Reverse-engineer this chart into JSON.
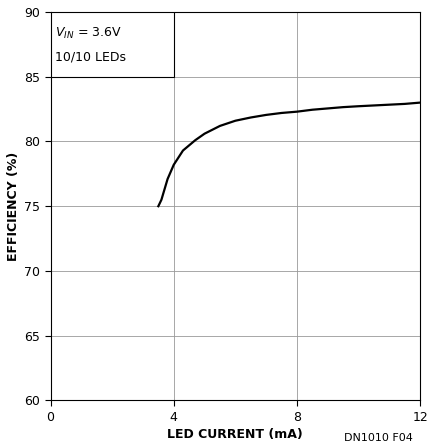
{
  "xlabel": "LED CURRENT (mA)",
  "ylabel": "EFFICIENCY (%)",
  "annotation_line1": "$V_{IN}$ = 3.6V",
  "annotation_line2": "10/10 LEDs",
  "xlim": [
    0,
    12
  ],
  "ylim": [
    60,
    90
  ],
  "xticks": [
    0,
    4,
    8,
    12
  ],
  "yticks": [
    60,
    65,
    70,
    75,
    80,
    85,
    90
  ],
  "curve_x": [
    3.5,
    3.6,
    3.7,
    3.8,
    4.0,
    4.3,
    4.7,
    5.0,
    5.5,
    6.0,
    6.5,
    7.0,
    7.5,
    8.0,
    8.5,
    9.0,
    9.5,
    10.0,
    10.5,
    11.0,
    11.5,
    12.0
  ],
  "curve_y": [
    75.0,
    75.5,
    76.3,
    77.1,
    78.2,
    79.3,
    80.1,
    80.6,
    81.2,
    81.6,
    81.85,
    82.05,
    82.2,
    82.3,
    82.45,
    82.55,
    82.65,
    82.72,
    82.78,
    82.84,
    82.9,
    83.0
  ],
  "line_color": "#000000",
  "line_width": 1.6,
  "grid_color": "#999999",
  "grid_linewidth": 0.6,
  "background_color": "#ffffff",
  "axis_label_fontsize": 9,
  "tick_fontsize": 9,
  "annotation_fontsize": 9,
  "footnote": "DN1010 F04",
  "footnote_fontsize": 8
}
